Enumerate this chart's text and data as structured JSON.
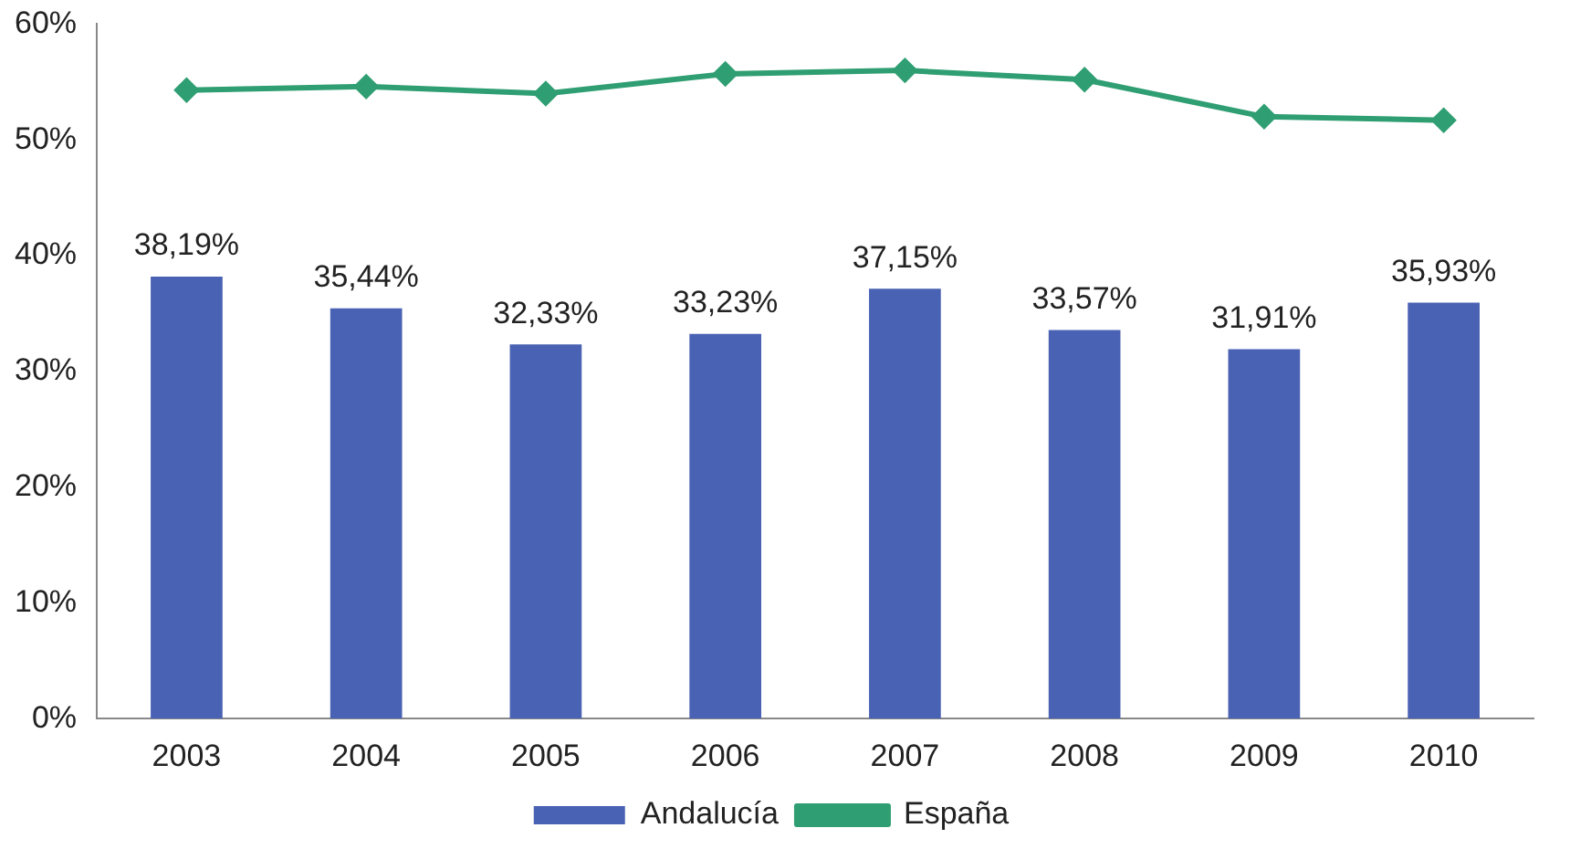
{
  "chart_data": {
    "type": "bar",
    "categories": [
      "2003",
      "2004",
      "2005",
      "2006",
      "2007",
      "2008",
      "2009",
      "2010"
    ],
    "series": [
      {
        "name": "Andalucía",
        "color": "#4a62b3",
        "values": [
          38.19,
          35.44,
          32.33,
          33.23,
          37.15,
          33.57,
          31.91,
          35.93
        ],
        "value_labels": [
          "38,19%",
          "35,44%",
          "32,33%",
          "33,23%",
          "37,15%",
          "33,57%",
          "31,91%",
          "35,93%"
        ]
      },
      {
        "name": "España",
        "type": "line",
        "color": "#2f9e72",
        "values": [
          54.3,
          54.6,
          54.0,
          55.7,
          56.0,
          55.2,
          52.0,
          51.7
        ],
        "marker": "diamond"
      }
    ],
    "ylim": [
      0,
      60
    ],
    "yticks": [
      {
        "value": 0,
        "label": "0%"
      },
      {
        "value": 10,
        "label": "10%"
      },
      {
        "value": 20,
        "label": "20%"
      },
      {
        "value": 30,
        "label": "30%"
      },
      {
        "value": 40,
        "label": "40%"
      },
      {
        "value": 50,
        "label": "50%"
      },
      {
        "value": 60,
        "label": "60%"
      }
    ],
    "grid": false,
    "legend": "bottom"
  }
}
